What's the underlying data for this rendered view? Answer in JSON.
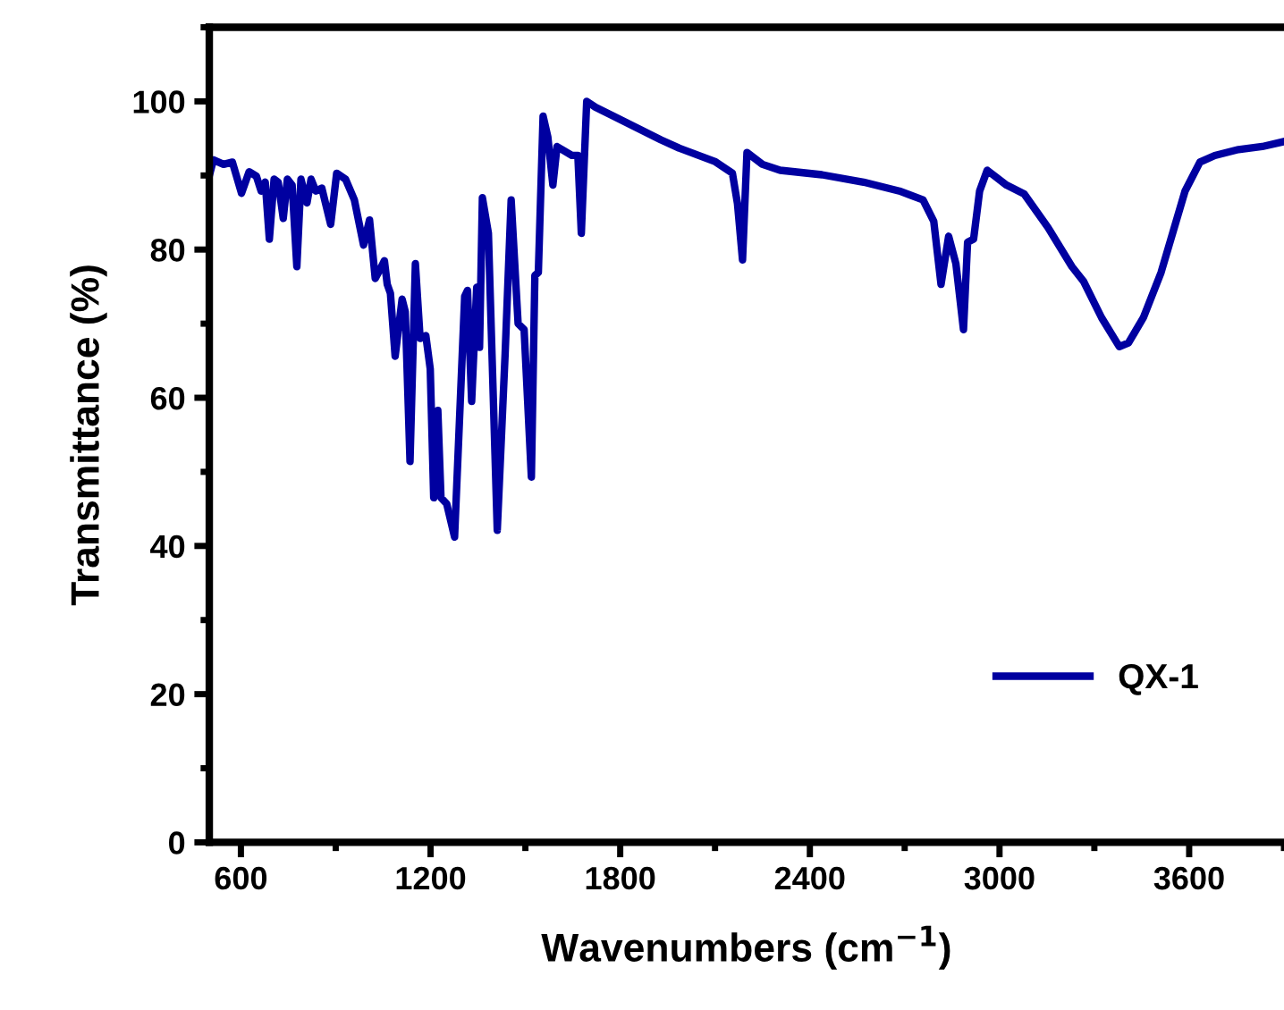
{
  "chart_data": {
    "type": "line",
    "xlabel": "Wavenumbers (cm$^{−1}$)",
    "ylabel": "Transmittance (%)",
    "xlim": [
      500,
      3900
    ],
    "ylim": [
      0,
      110
    ],
    "xticks": [
      600,
      {
        "value": 900,
        "label": null
      },
      1200,
      {
        "value": 1500,
        "label": null
      },
      1800,
      {
        "value": 2100,
        "label": null
      },
      2400,
      {
        "value": 2700,
        "label": null
      },
      3000,
      {
        "value": 3300,
        "label": null
      },
      3600,
      {
        "value": 3900,
        "label": null
      }
    ],
    "yticks": [
      0,
      {
        "value": 10,
        "label": null
      },
      20,
      {
        "value": 30,
        "label": null
      },
      40,
      {
        "value": 50,
        "label": null
      },
      60,
      {
        "value": 70,
        "label": null
      },
      80,
      {
        "value": 90,
        "label": null
      },
      100,
      {
        "value": 110,
        "label": null
      }
    ],
    "grid": false,
    "legend": "center right",
    "marker": "none",
    "line_style": "solid",
    "series": [
      {
        "name": "QX-1",
        "color": "#0000a0",
        "x": [
          502,
          513,
          545,
          573,
          602,
          626,
          649,
          664,
          677,
          690,
          705,
          718,
          734,
          747,
          762,
          777,
          790,
          809,
          822,
          837,
          856,
          884,
          903,
          931,
          959,
          988,
          1007,
          1025,
          1040,
          1054,
          1063,
          1073,
          1088,
          1110,
          1120,
          1135,
          1152,
          1167,
          1185,
          1199,
          1210,
          1223,
          1233,
          1251,
          1276,
          1308,
          1317,
          1330,
          1346,
          1355,
          1364,
          1383,
          1411,
          1436,
          1455,
          1477,
          1496,
          1519,
          1530,
          1541,
          1556,
          1571,
          1587,
          1600,
          1647,
          1666,
          1677,
          1694,
          1722,
          1779,
          1854,
          1929,
          1986,
          2099,
          2155,
          2171,
          2187,
          2201,
          2250,
          2306,
          2438,
          2570,
          2683,
          2758,
          2792,
          2815,
          2839,
          2862,
          2886,
          2899,
          2918,
          2937,
          2961,
          3022,
          3078,
          3153,
          3229,
          3266,
          3323,
          3379,
          3408,
          3455,
          3511,
          3587,
          3634,
          3681,
          3756,
          3831,
          3892
        ],
        "values": [
          90.3,
          92.1,
          91.5,
          91.8,
          87.6,
          90.5,
          89.9,
          87.9,
          89.1,
          81.4,
          89.5,
          89.1,
          84.2,
          89.5,
          88.7,
          77.7,
          89.5,
          86.3,
          89.5,
          87.9,
          88.3,
          83.4,
          90.3,
          89.5,
          86.7,
          80.6,
          84.0,
          76.1,
          77.3,
          78.5,
          75.3,
          74.1,
          65.6,
          73.3,
          71.6,
          51.4,
          78.1,
          68.0,
          68.4,
          63.9,
          46.5,
          58.3,
          46.5,
          45.7,
          41.2,
          73.7,
          74.5,
          59.5,
          74.9,
          66.8,
          87.0,
          82.2,
          42.1,
          66.0,
          86.7,
          70.0,
          69.2,
          49.3,
          76.5,
          76.9,
          98.0,
          95.2,
          88.7,
          93.9,
          92.7,
          92.7,
          82.2,
          100.0,
          99.2,
          98.0,
          96.4,
          94.8,
          93.7,
          91.9,
          90.3,
          86.2,
          78.6,
          93.1,
          91.5,
          90.7,
          90.1,
          89.1,
          87.9,
          86.7,
          83.8,
          75.3,
          81.8,
          78.1,
          69.2,
          81.0,
          81.4,
          87.9,
          90.7,
          88.7,
          87.5,
          83.0,
          77.7,
          75.7,
          70.8,
          66.9,
          67.4,
          70.8,
          76.9,
          87.9,
          91.8,
          92.7,
          93.5,
          93.9,
          94.5
        ]
      }
    ]
  }
}
